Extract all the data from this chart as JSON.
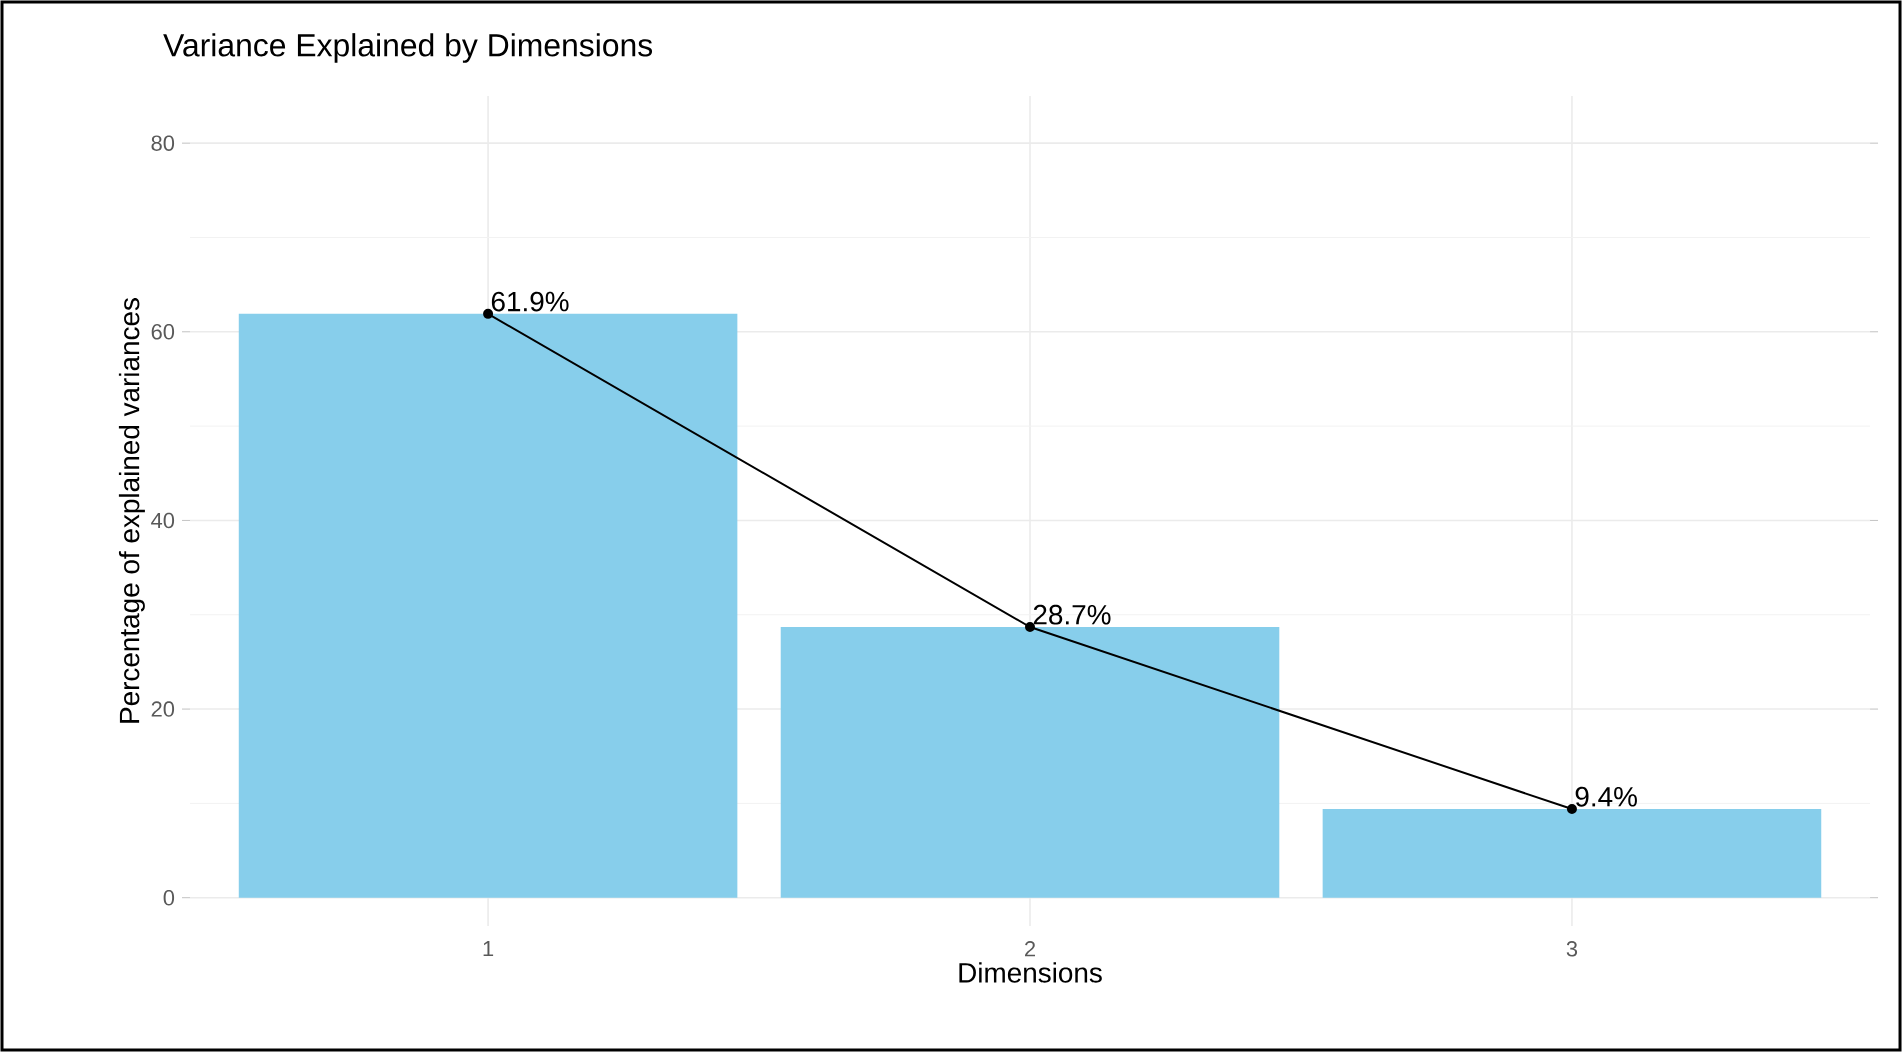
{
  "chart_data": {
    "type": "bar",
    "title": "Variance Explained by Dimensions",
    "xlabel": "Dimensions",
    "ylabel": "Percentage of explained variances",
    "categories": [
      "1",
      "2",
      "3"
    ],
    "series": [
      {
        "color": "#87ceeb",
        "values": [
          61.9,
          28.7,
          9.4
        ]
      },
      {
        "type": "line",
        "color": "#000000",
        "values": [
          61.9,
          28.7,
          9.4
        ],
        "marker": "circle",
        "value_labels": [
          "61.9%",
          "28.7%",
          "9.4%"
        ]
      }
    ],
    "ylim": [
      -3,
      85
    ],
    "yticks": [
      0,
      20,
      40,
      60,
      80
    ],
    "grid": true
  }
}
